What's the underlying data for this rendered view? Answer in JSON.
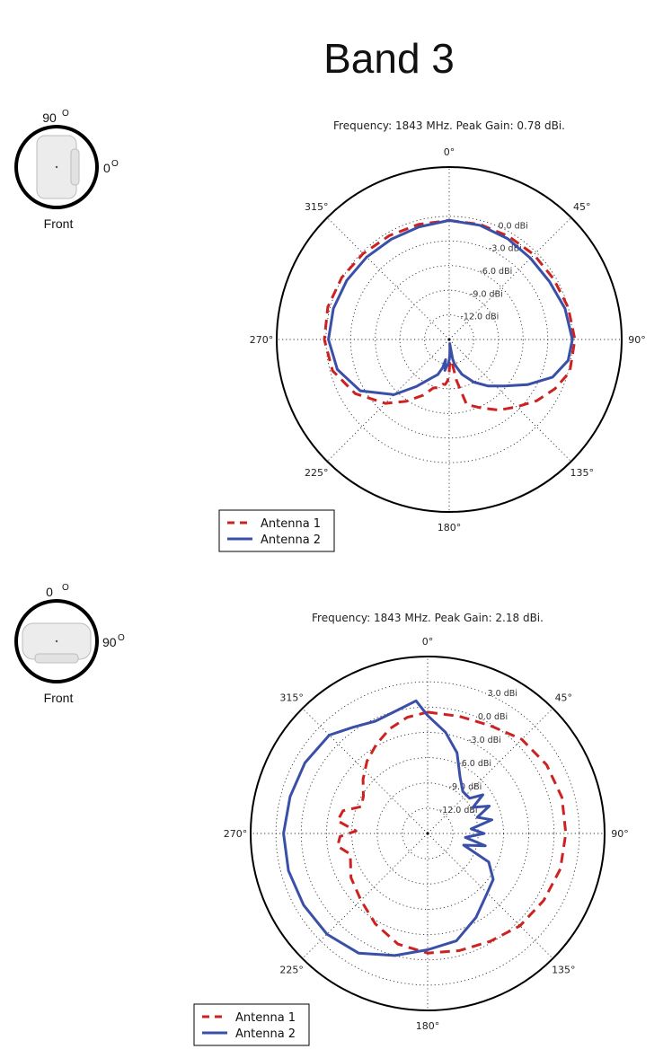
{
  "page_title": "Band 3",
  "colors": {
    "antenna1": "#cc2222",
    "antenna2": "#3a4fa8"
  },
  "chart_data": [
    {
      "type": "polar-line",
      "title": "Frequency: 1843 MHz. Peak Gain: 0.78 dBi.",
      "angle_labels": [
        "0°",
        "45°",
        "90°",
        "135°",
        "180°",
        "225°",
        "270°",
        "315°"
      ],
      "rings_dBi": [
        0.0,
        -3.0,
        -6.0,
        -9.0,
        -12.0
      ],
      "ring_labels": [
        "0.0 dBi",
        "-3.0 dBi",
        "-6.0 dBi",
        "-9.0 dBi",
        "-12.0 dBi"
      ],
      "r_range_dBi": [
        -15,
        6
      ],
      "legend_position": "bottom-left",
      "orientation": {
        "top": "90",
        "right": "0",
        "caption": "Front",
        "degree_symbol": "O"
      },
      "series": [
        {
          "name": "Antenna 1",
          "style": "dashed",
          "theta_deg": [
            0,
            15,
            30,
            45,
            60,
            75,
            90,
            105,
            115,
            125,
            135,
            145,
            155,
            165,
            170,
            174,
            176,
            178,
            180,
            182,
            185,
            188,
            192,
            198,
            205,
            215,
            225,
            240,
            255,
            270,
            285,
            300,
            315,
            330,
            345,
            360
          ],
          "gain_dBi": [
            -0.5,
            -0.5,
            -0.5,
            -0.4,
            -0.3,
            0.0,
            0.3,
            0.2,
            -0.8,
            -2.0,
            -3.4,
            -4.5,
            -5.8,
            -6.8,
            -10.0,
            -12.5,
            -13.5,
            -12.5,
            -11.0,
            -10.0,
            -9.5,
            -9.5,
            -9.0,
            -8.8,
            -7.5,
            -5.8,
            -4.0,
            -1.8,
            -0.3,
            0.2,
            0.3,
            0.1,
            -0.2,
            -0.4,
            -0.5,
            -0.5
          ]
        },
        {
          "name": "Antenna 2",
          "style": "solid",
          "theta_deg": [
            0,
            15,
            30,
            45,
            60,
            75,
            90,
            100,
            110,
            120,
            130,
            140,
            150,
            160,
            165,
            168,
            170,
            172,
            175,
            178,
            180,
            182,
            185,
            188,
            190,
            193,
            198,
            205,
            215,
            225,
            240,
            255,
            270,
            285,
            300,
            315,
            330,
            345,
            360
          ],
          "gain_dBi": [
            -0.5,
            -0.6,
            -0.8,
            -1.0,
            -0.9,
            -0.4,
            0.0,
            -0.3,
            -1.6,
            -4.0,
            -6.2,
            -7.6,
            -9.0,
            -10.5,
            -11.5,
            -12.0,
            -12.6,
            -14.5,
            -14.0,
            -13.0,
            -12.5,
            -12.0,
            -11.8,
            -11.2,
            -12.5,
            -11.5,
            -10.5,
            -9.8,
            -8.0,
            -5.5,
            -2.5,
            -0.9,
            -0.3,
            -0.4,
            -0.6,
            -0.8,
            -0.9,
            -0.8,
            -0.5
          ]
        }
      ]
    },
    {
      "type": "polar-line",
      "title": "Frequency: 1843 MHz. Peak Gain: 2.18 dBi.",
      "angle_labels": [
        "0°",
        "45°",
        "90°",
        "135°",
        "180°",
        "225°",
        "270°",
        "315°"
      ],
      "rings_dBi": [
        3.0,
        0.0,
        -3.0,
        -6.0,
        -9.0,
        -12.0
      ],
      "ring_labels": [
        "3.0 dBi",
        "0.0 dBi",
        "-3.0 dBi",
        "-6.0 dBi",
        "-9.0 dBi",
        "-12.0 dBi"
      ],
      "r_range_dBi": [
        -15,
        6
      ],
      "legend_position": "bottom-left",
      "orientation": {
        "top": "0",
        "right": "90",
        "caption": "Front",
        "degree_symbol": "O"
      },
      "series": [
        {
          "name": "Antenna 1",
          "style": "dashed",
          "theta_deg": [
            0,
            15,
            30,
            45,
            60,
            75,
            90,
            105,
            120,
            135,
            150,
            165,
            180,
            195,
            210,
            225,
            240,
            255,
            262,
            268,
            272,
            278,
            285,
            292,
            300,
            310,
            320,
            330,
            340,
            350,
            360
          ],
          "gain_dBi": [
            -0.6,
            -0.6,
            -0.2,
            0.8,
            1.3,
            1.5,
            1.4,
            1.3,
            0.9,
            0.5,
            -0.2,
            -0.6,
            -0.8,
            -1.4,
            -2.6,
            -3.8,
            -4.5,
            -5.5,
            -4.2,
            -4.6,
            -6.5,
            -4.2,
            -4.6,
            -6.5,
            -6.2,
            -5.0,
            -3.8,
            -2.8,
            -1.8,
            -1.0,
            -0.6
          ]
        },
        {
          "name": "Antenna 2",
          "style": "solid",
          "theta_deg": [
            0,
            10,
            20,
            30,
            40,
            50,
            55,
            60,
            66,
            72,
            78,
            84,
            90,
            96,
            102,
            108,
            115,
            125,
            135,
            150,
            165,
            180,
            195,
            210,
            225,
            240,
            255,
            270,
            285,
            300,
            315,
            325,
            335,
            345,
            355,
            360
          ],
          "gain_dBi": [
            -1.0,
            -2.8,
            -4.8,
            -7.3,
            -8.5,
            -8.5,
            -7.0,
            -8.8,
            -7.0,
            -8.8,
            -7.2,
            -9.8,
            -8.3,
            -10.5,
            -8.0,
            -10.5,
            -7.0,
            -5.5,
            -5.0,
            -3.5,
            -1.8,
            -1.2,
            0.0,
            1.4,
            1.9,
            2.0,
            2.1,
            2.1,
            1.9,
            1.8,
            1.5,
            0.4,
            -0.3,
            0.0,
            0.8,
            -1.0
          ]
        }
      ]
    }
  ],
  "legend": [
    "Antenna 1",
    "Antenna 2"
  ]
}
